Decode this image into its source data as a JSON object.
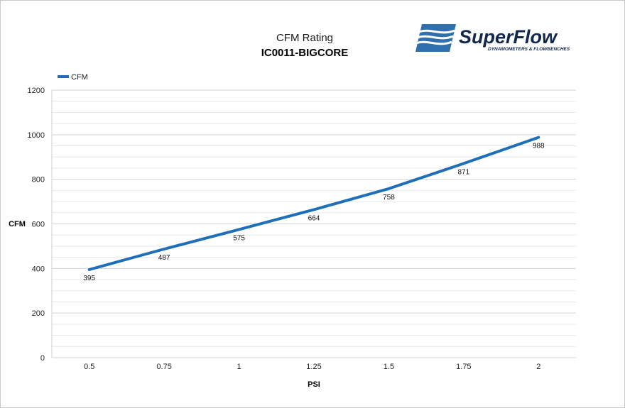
{
  "brand": {
    "name": "SuperFlow",
    "tagline": "DYNAMOMETERS & FLOWBENCHES",
    "colors": {
      "navy": "#12284c",
      "blue": "#2f6fae"
    }
  },
  "chart_data": {
    "type": "line",
    "title": "CFM Rating",
    "subtitle": "IC0011-BIGCORE",
    "xlabel": "PSI",
    "ylabel": "CFM",
    "categories": [
      "0.5",
      "0.75",
      "1",
      "1.25",
      "1.5",
      "1.75",
      "2"
    ],
    "series": [
      {
        "name": "CFM",
        "values": [
          395,
          487,
          575,
          664,
          758,
          871,
          988
        ],
        "color": "#1f6fb8"
      }
    ],
    "ylim": [
      0,
      1200
    ],
    "yticks": [
      0,
      200,
      400,
      600,
      800,
      1000,
      1200
    ],
    "grid": true,
    "legend": "top-left",
    "data_labels": true
  }
}
